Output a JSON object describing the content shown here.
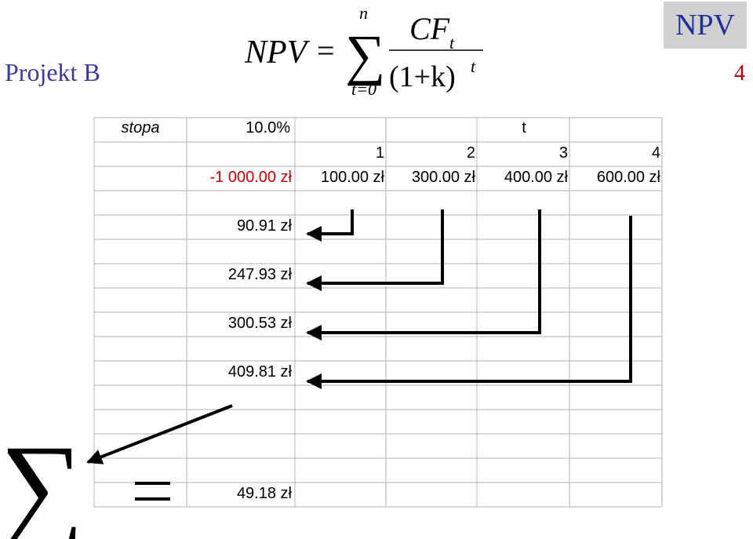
{
  "slide": {
    "title": "Projekt B",
    "badge": "NPV",
    "page_number": "4"
  },
  "formula": {
    "lhs": "NPV",
    "equals": "=",
    "sum_upper": "n",
    "sum_lower": "t=0",
    "numerator": "CF",
    "numerator_sub": "t",
    "denominator": "(1+k)",
    "denominator_sup": "t"
  },
  "sheet": {
    "rate_label": "stopa",
    "rate_value": "10.0%",
    "t_header": "t",
    "periods": [
      "1",
      "2",
      "3",
      "4"
    ],
    "initial_outlay": "-1 000.00 zł",
    "cash_flows": [
      "100.00 zł",
      "300.00 zł",
      "400.00 zł",
      "600.00 zł"
    ],
    "discounted": [
      "90.91 zł",
      "247.93 zł",
      "300.53 zł",
      "409.81 zł"
    ],
    "npv_result": "49.18 zł",
    "sum_symbol": "∑",
    "equals_symbol": "="
  },
  "colors": {
    "title": "#3a3a9e",
    "badge_bg": "#d0d0d0",
    "badge_text": "#1f2f9f",
    "negative": "#d00000",
    "page_number": "#c00000"
  }
}
